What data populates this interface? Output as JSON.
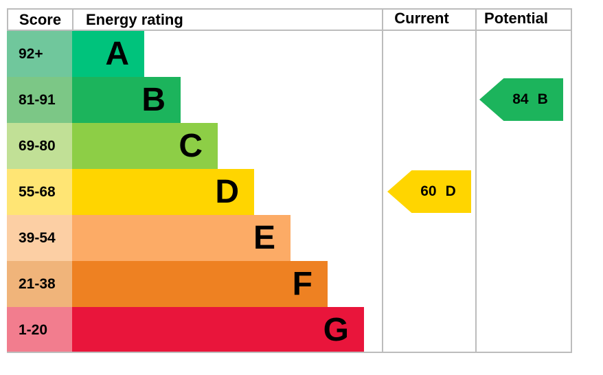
{
  "header": {
    "score": "Score",
    "energy_rating": "Energy rating",
    "current": "Current",
    "potential": "Potential"
  },
  "chart_data": {
    "type": "bar",
    "subtype": "epc-energy-rating-table",
    "columns": [
      "Score",
      "Energy rating",
      "Current",
      "Potential"
    ],
    "bands": [
      {
        "letter": "A",
        "score_range": "92+",
        "band_color": "#00c37c",
        "score_cell_color": "#70c79c"
      },
      {
        "letter": "B",
        "score_range": "81-91",
        "band_color": "#1cb45c",
        "score_cell_color": "#7cc786"
      },
      {
        "letter": "C",
        "score_range": "69-80",
        "band_color": "#8dce46",
        "score_cell_color": "#c1e096"
      },
      {
        "letter": "D",
        "score_range": "55-68",
        "band_color": "#ffd500",
        "score_cell_color": "#ffe574"
      },
      {
        "letter": "E",
        "score_range": "39-54",
        "band_color": "#fcab66",
        "score_cell_color": "#fccfa4"
      },
      {
        "letter": "F",
        "score_range": "21-38",
        "band_color": "#ee8122",
        "score_cell_color": "#f0b47a"
      },
      {
        "letter": "G",
        "score_range": "1-20",
        "band_color": "#e9153b",
        "score_cell_color": "#f27d8e"
      }
    ],
    "current": {
      "score": "60",
      "band": "D",
      "band_index": 3,
      "arrow_color": "#ffd500"
    },
    "potential": {
      "score": "84",
      "band": "B",
      "band_index": 1,
      "arrow_color": "#1cb45c"
    }
  }
}
